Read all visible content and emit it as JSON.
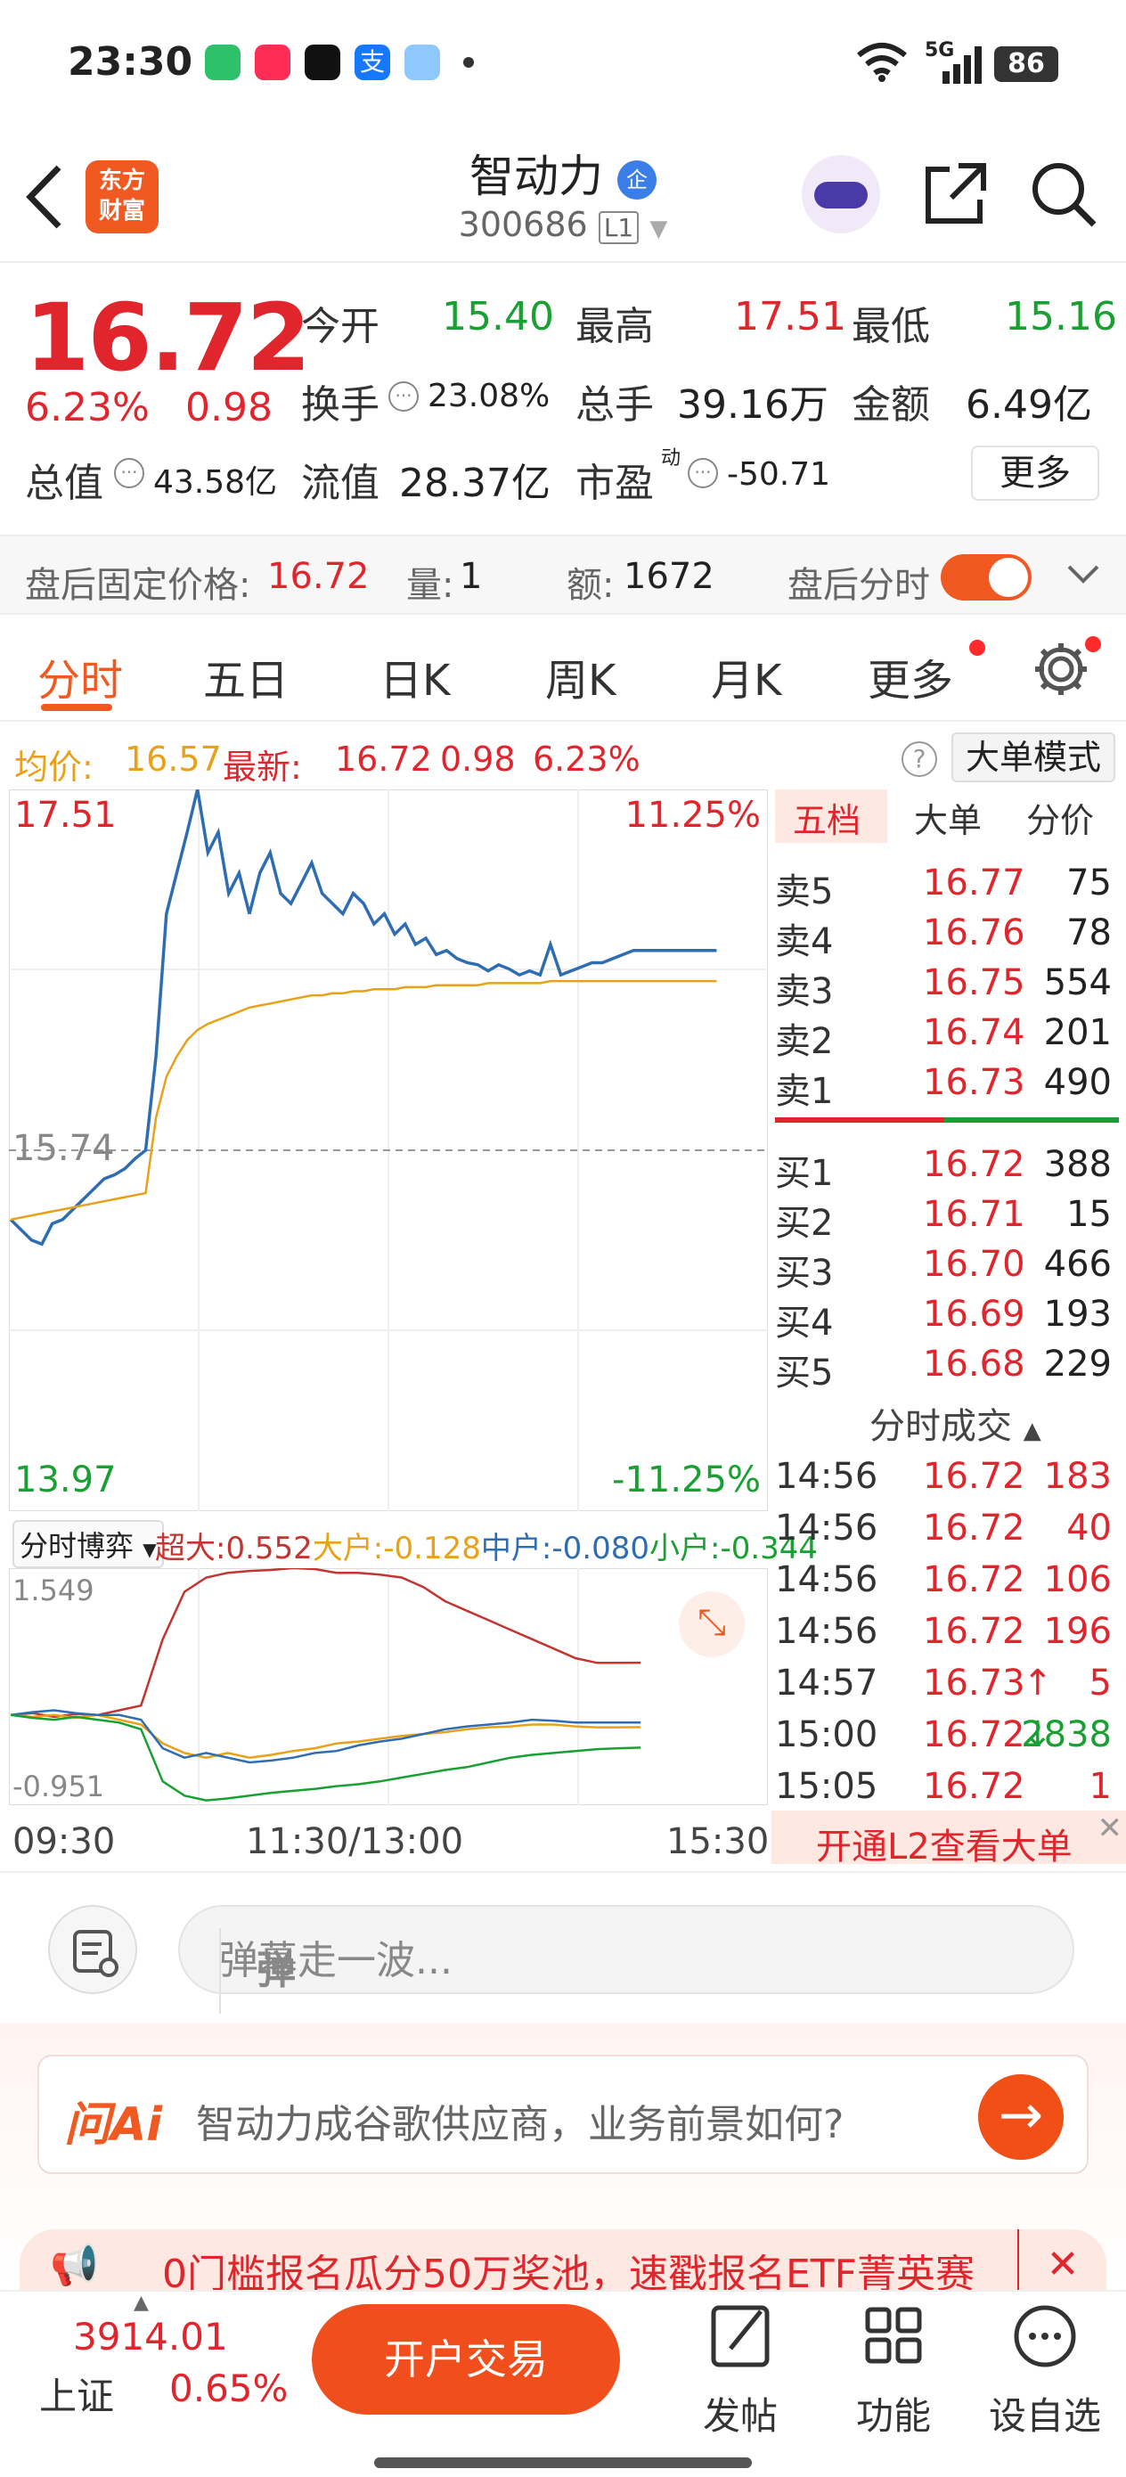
{
  "status_bar": {
    "time": "23:30",
    "network": "5G",
    "battery": "86"
  },
  "header": {
    "logo_line1": "东方",
    "logo_line2": "财富",
    "title": "智动力",
    "title_badge": "企",
    "code": "300686",
    "level_badge": "L1"
  },
  "quote": {
    "price": "16.72",
    "change_pct": "6.23%",
    "change": "0.98",
    "open_label": "今开",
    "open": "15.40",
    "high_label": "最高",
    "high": "17.51",
    "low_label": "最低",
    "low": "15.16",
    "turnover_label": "换手",
    "turnover": "23.08%",
    "volume_label": "总手",
    "volume": "39.16万",
    "amount_label": "金额",
    "amount": "6.49亿",
    "mktcap_label": "总值",
    "mktcap": "43.58亿",
    "float_label": "流值",
    "float": "28.37亿",
    "pe_label": "市盈",
    "pe_sup": "动",
    "pe": "-50.71",
    "more_label": "更多"
  },
  "after_hours": {
    "fixed_label": "盘后固定价格:",
    "fixed_price": "16.72",
    "vol_label": "量:",
    "vol": "1",
    "amt_label": "额:",
    "amt": "1672",
    "toggle_label": "盘后分时"
  },
  "tabs": [
    "分时",
    "五日",
    "日K",
    "周K",
    "月K",
    "更多"
  ],
  "avg_row": {
    "avg_label": "均价:",
    "avg": "16.57",
    "latest_label": "最新:",
    "latest": "16.72",
    "chg": "0.98",
    "pct": "6.23%",
    "mode_label": "大单模式"
  },
  "chart_data": {
    "type": "line",
    "y_top": "17.51",
    "y_mid": "15.74",
    "y_bottom": "13.97",
    "pct_top": "11.25%",
    "pct_bottom": "-11.25%",
    "ylim": [
      13.97,
      17.51
    ],
    "x_labels": [
      "09:30",
      "11:30/13:00",
      "15:30"
    ],
    "series": [
      {
        "values": [
          15.4,
          15.35,
          15.3,
          15.28,
          15.38,
          15.4,
          15.45,
          15.5,
          15.55,
          15.6,
          15.62,
          15.65,
          15.7,
          15.74,
          16.2,
          16.9,
          17.1,
          17.3,
          17.51,
          17.2,
          17.3,
          17.0,
          17.1,
          16.9,
          17.1,
          17.2,
          17.0,
          16.95,
          17.05,
          17.15,
          17.0,
          16.95,
          16.9,
          17.0,
          16.95,
          16.85,
          16.9,
          16.8,
          16.85,
          16.75,
          16.78,
          16.7,
          16.72,
          16.68,
          16.66,
          16.65,
          16.62,
          16.65,
          16.63,
          16.6,
          16.62,
          16.6,
          16.75,
          16.6,
          16.62,
          16.64,
          16.66,
          16.66,
          16.68,
          16.7,
          16.72,
          16.72,
          16.72,
          16.72,
          16.72,
          16.72,
          16.72,
          16.72,
          16.72
        ]
      },
      {
        "values": [
          15.4,
          15.41,
          15.42,
          15.43,
          15.44,
          15.45,
          15.46,
          15.47,
          15.48,
          15.49,
          15.5,
          15.51,
          15.52,
          15.53,
          15.9,
          16.1,
          16.2,
          16.28,
          16.33,
          16.36,
          16.38,
          16.4,
          16.42,
          16.44,
          16.45,
          16.46,
          16.47,
          16.48,
          16.49,
          16.5,
          16.5,
          16.51,
          16.51,
          16.52,
          16.52,
          16.53,
          16.53,
          16.53,
          16.54,
          16.54,
          16.54,
          16.55,
          16.55,
          16.55,
          16.55,
          16.55,
          16.56,
          16.56,
          16.56,
          16.56,
          16.56,
          16.56,
          16.57,
          16.57,
          16.57,
          16.57,
          16.57,
          16.57,
          16.57,
          16.57,
          16.57,
          16.57,
          16.57,
          16.57,
          16.57,
          16.57,
          16.57,
          16.57,
          16.57
        ]
      }
    ],
    "colors": {
      "price": "#2f6db3",
      "avg": "#e8a21a"
    }
  },
  "flow_chart": {
    "dropdown_label": "分时博弈",
    "legend": [
      {
        "label": "超大:",
        "value": "0.552",
        "color": "#c23531"
      },
      {
        "label": "大户:",
        "value": "-0.128",
        "color": "#e8a21a"
      },
      {
        "label": "中户:",
        "value": "-0.080",
        "color": "#2f6db3"
      },
      {
        "label": "小户:",
        "value": "-0.344",
        "color": "#18a032"
      }
    ],
    "y_top": "1.549",
    "y_bottom": "-0.951",
    "ylim": [
      -0.951,
      1.549
    ],
    "series": [
      {
        "values": [
          0.0,
          0.02,
          -0.02,
          0.01,
          0.0,
          0.05,
          0.1,
          0.8,
          1.3,
          1.45,
          1.5,
          1.52,
          1.53,
          1.55,
          1.54,
          1.5,
          1.5,
          1.48,
          1.45,
          1.35,
          1.2,
          1.1,
          1.0,
          0.9,
          0.8,
          0.7,
          0.6,
          0.55,
          0.55,
          0.552
        ]
      },
      {
        "values": [
          0.0,
          -0.02,
          0.0,
          -0.03,
          0.0,
          -0.05,
          -0.1,
          -0.3,
          -0.4,
          -0.45,
          -0.4,
          -0.45,
          -0.42,
          -0.38,
          -0.35,
          -0.3,
          -0.28,
          -0.25,
          -0.22,
          -0.2,
          -0.18,
          -0.15,
          -0.13,
          -0.12,
          -0.1,
          -0.1,
          -0.12,
          -0.13,
          -0.13,
          -0.128
        ]
      },
      {
        "values": [
          0.0,
          0.03,
          0.05,
          0.02,
          0.0,
          0.0,
          -0.05,
          -0.35,
          -0.45,
          -0.4,
          -0.45,
          -0.5,
          -0.48,
          -0.45,
          -0.4,
          -0.38,
          -0.32,
          -0.28,
          -0.25,
          -0.2,
          -0.15,
          -0.12,
          -0.1,
          -0.08,
          -0.05,
          -0.06,
          -0.08,
          -0.08,
          -0.08,
          -0.08
        ]
      },
      {
        "values": [
          0.0,
          -0.03,
          -0.05,
          -0.02,
          -0.05,
          -0.08,
          -0.15,
          -0.7,
          -0.85,
          -0.9,
          -0.88,
          -0.85,
          -0.82,
          -0.8,
          -0.78,
          -0.75,
          -0.73,
          -0.7,
          -0.66,
          -0.62,
          -0.58,
          -0.55,
          -0.5,
          -0.45,
          -0.42,
          -0.4,
          -0.38,
          -0.36,
          -0.35,
          -0.344
        ]
      }
    ]
  },
  "order_book": {
    "tabs": [
      "五档",
      "大单",
      "分价"
    ],
    "asks": [
      {
        "name": "卖5",
        "price": "16.77",
        "vol": "75"
      },
      {
        "name": "卖4",
        "price": "16.76",
        "vol": "78"
      },
      {
        "name": "卖3",
        "price": "16.75",
        "vol": "554"
      },
      {
        "name": "卖2",
        "price": "16.74",
        "vol": "201"
      },
      {
        "name": "卖1",
        "price": "16.73",
        "vol": "490"
      }
    ],
    "bids": [
      {
        "name": "买1",
        "price": "16.72",
        "vol": "388"
      },
      {
        "name": "买2",
        "price": "16.71",
        "vol": "15"
      },
      {
        "name": "买3",
        "price": "16.70",
        "vol": "466"
      },
      {
        "name": "买4",
        "price": "16.69",
        "vol": "193"
      },
      {
        "name": "买5",
        "price": "16.68",
        "vol": "229"
      }
    ],
    "trades_title": "分时成交",
    "trades": [
      {
        "time": "14:56",
        "price": "16.72",
        "vol": "183",
        "color": "#e0262c"
      },
      {
        "time": "14:56",
        "price": "16.72",
        "vol": "40",
        "color": "#e0262c"
      },
      {
        "time": "14:56",
        "price": "16.72",
        "vol": "106",
        "color": "#e0262c"
      },
      {
        "time": "14:56",
        "price": "16.72",
        "vol": "196",
        "color": "#e0262c"
      },
      {
        "time": "14:57",
        "price": "16.73",
        "vol": "5",
        "arrow": "↑",
        "color": "#e0262c"
      },
      {
        "time": "15:00",
        "price": "16.72",
        "vol": "2838",
        "arrow": "↓",
        "color": "#18a032"
      },
      {
        "time": "15:05",
        "price": "16.72",
        "vol": "1",
        "color": "#e0262c"
      }
    ],
    "l2_banner": "开通L2查看大单"
  },
  "danmu": {
    "placeholder": "弹幕走一波...",
    "send_label": "弹"
  },
  "ai": {
    "logo": "问Ai",
    "question": "智动力成谷歌供应商，业务前景如何?",
    "promo": "0门槛报名瓜分50万奖池，速戳报名ETF菁英赛"
  },
  "bottom_bar": {
    "index_value": "3914.01",
    "index_name": "上证",
    "index_pct": "0.65%",
    "trade_label": "开户交易",
    "nav": [
      "发帖",
      "功能",
      "设自选"
    ]
  }
}
